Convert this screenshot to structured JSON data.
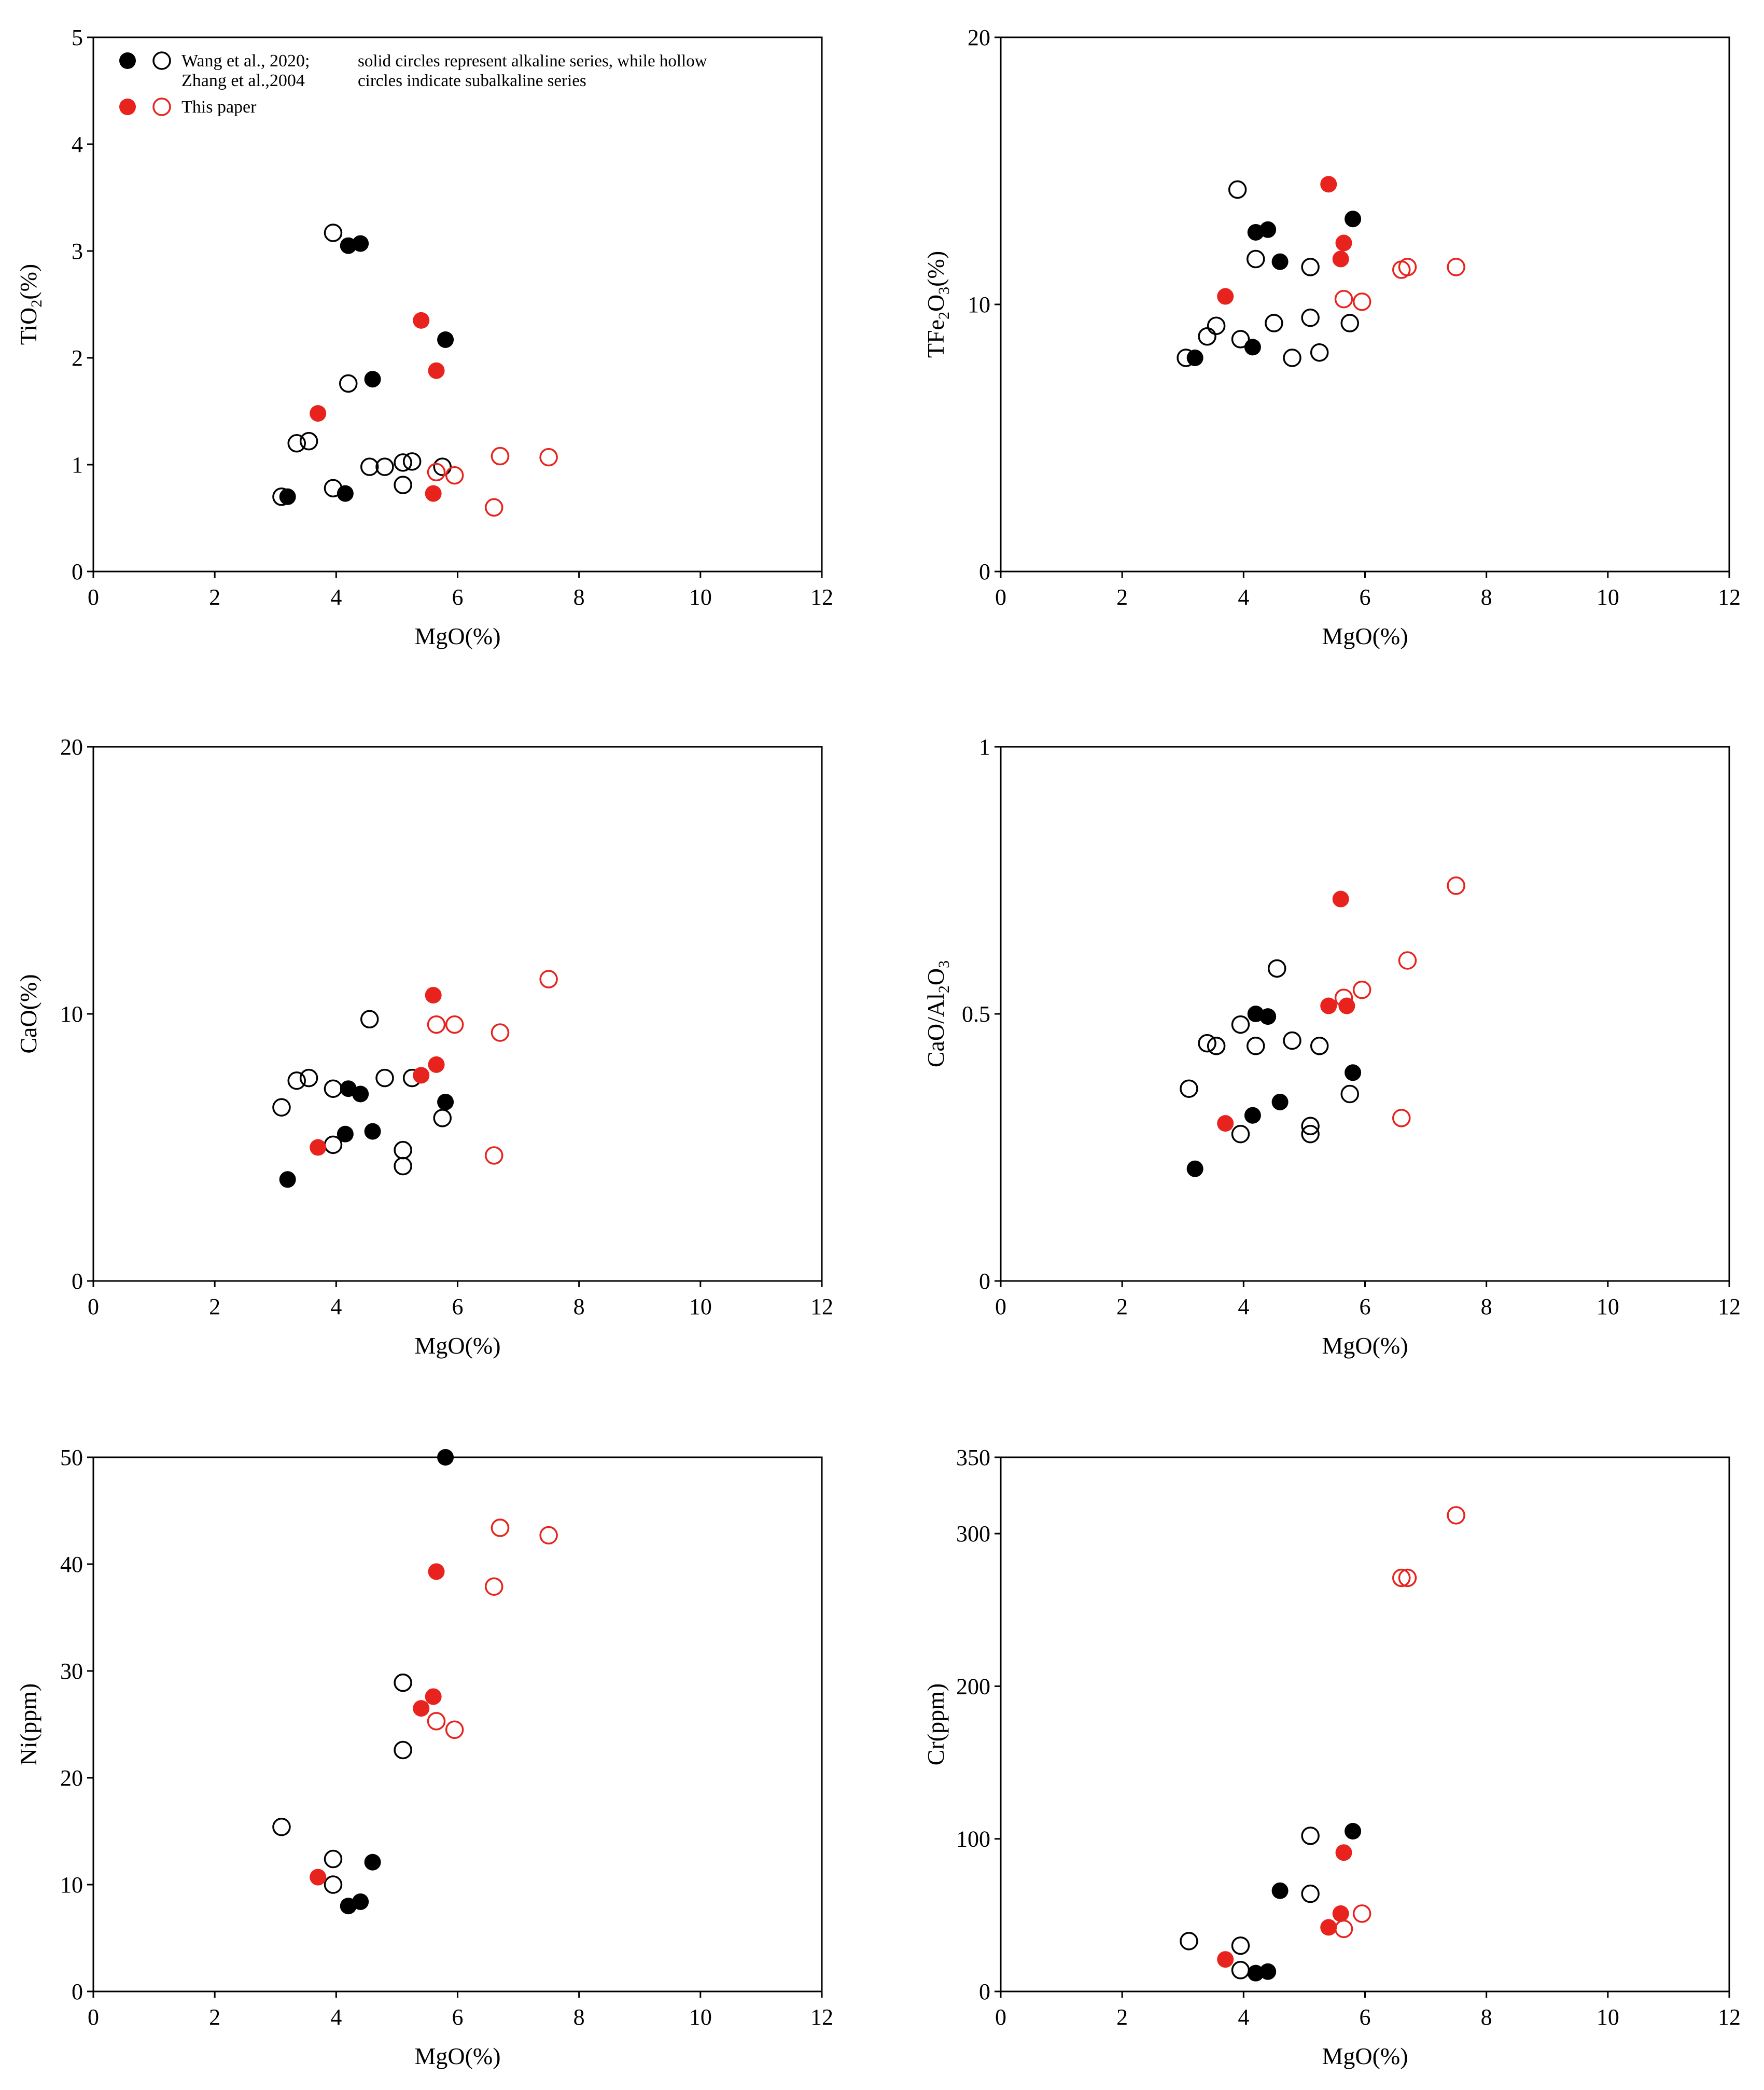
{
  "colors": {
    "ref": "#000000",
    "paper": "#e8231d"
  },
  "legend": {
    "ref_line1": "Wang et al., 2020;",
    "ref_line2": "Zhang et al.,2004",
    "paper": "This paper",
    "note_line1": "solid circles represent alkaline series, while hollow",
    "note_line2": "circles indicate subalkaline series"
  },
  "chart_data": [
    {
      "type": "scatter",
      "id": "tio2",
      "xlabel": "MgO(%)",
      "ylabel": "TiO2(%)",
      "xlim": [
        0,
        12
      ],
      "ylim": [
        0,
        5
      ],
      "xticks": [
        0,
        2,
        4,
        6,
        8,
        10,
        12
      ],
      "yticks": [
        0,
        1,
        2,
        3,
        4,
        5
      ],
      "series": [
        {
          "name": "Wang et al., 2020; Zhang et al.,2004 (alkaline)",
          "color": "#000000",
          "filled": true,
          "points": [
            [
              3.2,
              0.7
            ],
            [
              4.15,
              0.73
            ],
            [
              4.2,
              3.05
            ],
            [
              4.4,
              3.07
            ],
            [
              4.6,
              1.8
            ],
            [
              5.8,
              2.17
            ]
          ]
        },
        {
          "name": "Wang et al., 2020; Zhang et al.,2004 (subalkaline)",
          "color": "#000000",
          "filled": false,
          "points": [
            [
              3.1,
              0.7
            ],
            [
              3.35,
              1.2
            ],
            [
              3.55,
              1.22
            ],
            [
              3.95,
              0.78
            ],
            [
              3.95,
              3.17
            ],
            [
              4.2,
              1.76
            ],
            [
              4.55,
              0.98
            ],
            [
              4.8,
              0.98
            ],
            [
              5.1,
              1.02
            ],
            [
              5.25,
              1.03
            ],
            [
              5.1,
              0.81
            ],
            [
              5.75,
              0.98
            ]
          ]
        },
        {
          "name": "This paper (alkaline)",
          "color": "#e8231d",
          "filled": true,
          "points": [
            [
              3.7,
              1.48
            ],
            [
              5.4,
              2.35
            ],
            [
              5.6,
              0.73
            ],
            [
              5.65,
              1.88
            ]
          ]
        },
        {
          "name": "This paper (subalkaline)",
          "color": "#e8231d",
          "filled": false,
          "points": [
            [
              5.65,
              0.93
            ],
            [
              5.95,
              0.9
            ],
            [
              6.6,
              0.6
            ],
            [
              6.7,
              1.08
            ],
            [
              7.5,
              1.07
            ]
          ]
        }
      ]
    },
    {
      "type": "scatter",
      "id": "tfe2o3",
      "xlabel": "MgO(%)",
      "ylabel": "TFe2O3(%)",
      "xlim": [
        0,
        12
      ],
      "ylim": [
        0,
        20
      ],
      "xticks": [
        0,
        2,
        4,
        6,
        8,
        10,
        12
      ],
      "yticks": [
        0,
        10,
        20
      ],
      "series": [
        {
          "name": "Wang et al., 2020; Zhang et al.,2004 (alkaline)",
          "color": "#000000",
          "filled": true,
          "points": [
            [
              3.2,
              8.0
            ],
            [
              4.15,
              8.4
            ],
            [
              4.2,
              12.7
            ],
            [
              4.4,
              12.8
            ],
            [
              4.6,
              11.6
            ],
            [
              5.8,
              13.2
            ]
          ]
        },
        {
          "name": "Wang et al., 2020; Zhang et al.,2004 (subalkaline)",
          "color": "#000000",
          "filled": false,
          "points": [
            [
              3.05,
              8.0
            ],
            [
              3.4,
              8.8
            ],
            [
              3.55,
              9.2
            ],
            [
              3.9,
              14.3
            ],
            [
              3.95,
              8.7
            ],
            [
              4.2,
              11.7
            ],
            [
              4.5,
              9.3
            ],
            [
              4.8,
              8.0
            ],
            [
              5.1,
              9.5
            ],
            [
              5.1,
              11.4
            ],
            [
              5.25,
              8.2
            ],
            [
              5.75,
              9.3
            ]
          ]
        },
        {
          "name": "This paper (alkaline)",
          "color": "#e8231d",
          "filled": true,
          "points": [
            [
              3.7,
              10.3
            ],
            [
              5.4,
              14.5
            ],
            [
              5.6,
              11.7
            ],
            [
              5.65,
              12.3
            ]
          ]
        },
        {
          "name": "This paper (subalkaline)",
          "color": "#e8231d",
          "filled": false,
          "points": [
            [
              5.65,
              10.2
            ],
            [
              5.95,
              10.1
            ],
            [
              6.6,
              11.3
            ],
            [
              6.7,
              11.4
            ],
            [
              7.5,
              11.4
            ]
          ]
        }
      ]
    },
    {
      "type": "scatter",
      "id": "cao",
      "xlabel": "MgO(%)",
      "ylabel": "CaO(%)",
      "xlim": [
        0,
        12
      ],
      "ylim": [
        0,
        20
      ],
      "xticks": [
        0,
        2,
        4,
        6,
        8,
        10,
        12
      ],
      "yticks": [
        0,
        10,
        20
      ],
      "series": [
        {
          "name": "Wang et al., 2020; Zhang et al.,2004 (alkaline)",
          "color": "#000000",
          "filled": true,
          "points": [
            [
              3.2,
              3.8
            ],
            [
              4.15,
              5.5
            ],
            [
              4.2,
              7.2
            ],
            [
              4.4,
              7.0
            ],
            [
              4.6,
              5.6
            ],
            [
              5.8,
              6.7
            ]
          ]
        },
        {
          "name": "Wang et al., 2020; Zhang et al.,2004 (subalkaline)",
          "color": "#000000",
          "filled": false,
          "points": [
            [
              3.1,
              6.5
            ],
            [
              3.35,
              7.5
            ],
            [
              3.55,
              7.6
            ],
            [
              3.95,
              7.2
            ],
            [
              3.95,
              5.1
            ],
            [
              4.55,
              9.8
            ],
            [
              4.8,
              7.6
            ],
            [
              5.1,
              4.9
            ],
            [
              5.1,
              4.3
            ],
            [
              5.25,
              7.6
            ],
            [
              5.75,
              6.1
            ]
          ]
        },
        {
          "name": "This paper (alkaline)",
          "color": "#e8231d",
          "filled": true,
          "points": [
            [
              3.7,
              5.0
            ],
            [
              5.4,
              7.7
            ],
            [
              5.6,
              10.7
            ],
            [
              5.65,
              8.1
            ]
          ]
        },
        {
          "name": "This paper (subalkaline)",
          "color": "#e8231d",
          "filled": false,
          "points": [
            [
              5.65,
              9.6
            ],
            [
              5.95,
              9.6
            ],
            [
              6.6,
              4.7
            ],
            [
              6.7,
              9.3
            ],
            [
              7.5,
              11.3
            ]
          ]
        }
      ]
    },
    {
      "type": "scatter",
      "id": "cao_al2o3",
      "xlabel": "MgO(%)",
      "ylabel": "CaO/Al2O3",
      "xlim": [
        0,
        12
      ],
      "ylim": [
        0,
        1
      ],
      "xticks": [
        0,
        2,
        4,
        6,
        8,
        10,
        12
      ],
      "yticks": [
        0,
        0.5,
        1
      ],
      "series": [
        {
          "name": "Wang et al., 2020; Zhang et al.,2004 (alkaline)",
          "color": "#000000",
          "filled": true,
          "points": [
            [
              3.2,
              0.21
            ],
            [
              4.15,
              0.31
            ],
            [
              4.2,
              0.5
            ],
            [
              4.4,
              0.495
            ],
            [
              4.6,
              0.335
            ],
            [
              5.8,
              0.39
            ]
          ]
        },
        {
          "name": "Wang et al., 2020; Zhang et al.,2004 (subalkaline)",
          "color": "#000000",
          "filled": false,
          "points": [
            [
              3.1,
              0.36
            ],
            [
              3.4,
              0.445
            ],
            [
              3.55,
              0.44
            ],
            [
              3.95,
              0.48
            ],
            [
              3.95,
              0.275
            ],
            [
              4.2,
              0.44
            ],
            [
              4.55,
              0.585
            ],
            [
              4.8,
              0.45
            ],
            [
              5.1,
              0.29
            ],
            [
              5.1,
              0.275
            ],
            [
              5.25,
              0.44
            ],
            [
              5.75,
              0.35
            ]
          ]
        },
        {
          "name": "This paper (alkaline)",
          "color": "#e8231d",
          "filled": true,
          "points": [
            [
              3.7,
              0.295
            ],
            [
              5.4,
              0.515
            ],
            [
              5.6,
              0.715
            ],
            [
              5.7,
              0.515
            ]
          ]
        },
        {
          "name": "This paper (subalkaline)",
          "color": "#e8231d",
          "filled": false,
          "points": [
            [
              5.65,
              0.53
            ],
            [
              5.95,
              0.545
            ],
            [
              6.6,
              0.305
            ],
            [
              6.7,
              0.6
            ],
            [
              7.5,
              0.74
            ]
          ]
        }
      ]
    },
    {
      "type": "scatter",
      "id": "ni",
      "xlabel": "MgO(%)",
      "ylabel": "Ni(ppm)",
      "xlim": [
        0,
        12
      ],
      "ylim": [
        0,
        50
      ],
      "xticks": [
        0,
        2,
        4,
        6,
        8,
        10,
        12
      ],
      "yticks": [
        0,
        10,
        20,
        30,
        40,
        50
      ],
      "series": [
        {
          "name": "Wang et al., 2020; Zhang et al.,2004 (alkaline)",
          "color": "#000000",
          "filled": true,
          "points": [
            [
              4.2,
              8.0
            ],
            [
              4.4,
              8.4
            ],
            [
              4.6,
              12.1
            ],
            [
              5.8,
              50
            ]
          ]
        },
        {
          "name": "Wang et al., 2020; Zhang et al.,2004 (subalkaline)",
          "color": "#000000",
          "filled": false,
          "points": [
            [
              3.1,
              15.4
            ],
            [
              3.95,
              12.4
            ],
            [
              3.95,
              10.0
            ],
            [
              5.1,
              28.9
            ],
            [
              5.1,
              22.6
            ]
          ]
        },
        {
          "name": "This paper (alkaline)",
          "color": "#e8231d",
          "filled": true,
          "points": [
            [
              3.7,
              10.7
            ],
            [
              5.4,
              26.5
            ],
            [
              5.6,
              27.6
            ],
            [
              5.65,
              39.3
            ]
          ]
        },
        {
          "name": "This paper (subalkaline)",
          "color": "#e8231d",
          "filled": false,
          "points": [
            [
              5.65,
              25.3
            ],
            [
              5.95,
              24.5
            ],
            [
              6.6,
              37.9
            ],
            [
              6.7,
              43.4
            ],
            [
              7.5,
              42.7
            ]
          ]
        }
      ]
    },
    {
      "type": "scatter",
      "id": "cr",
      "xlabel": "MgO(%)",
      "ylabel": "Cr(ppm)",
      "xlim": [
        0,
        12
      ],
      "ylim": [
        0,
        350
      ],
      "xticks": [
        0,
        2,
        4,
        6,
        8,
        10,
        12
      ],
      "yticks": [
        0,
        100,
        200,
        300,
        350
      ],
      "series": [
        {
          "name": "Wang et al., 2020; Zhang et al.,2004 (alkaline)",
          "color": "#000000",
          "filled": true,
          "points": [
            [
              4.2,
              12
            ],
            [
              4.4,
              13
            ],
            [
              4.6,
              66
            ],
            [
              5.8,
              105
            ]
          ]
        },
        {
          "name": "Wang et al., 2020; Zhang et al.,2004 (subalkaline)",
          "color": "#000000",
          "filled": false,
          "points": [
            [
              3.1,
              33
            ],
            [
              3.95,
              30
            ],
            [
              3.95,
              14
            ],
            [
              5.1,
              102
            ],
            [
              5.1,
              64
            ]
          ]
        },
        {
          "name": "This paper (alkaline)",
          "color": "#e8231d",
          "filled": true,
          "points": [
            [
              3.7,
              21
            ],
            [
              5.4,
              42
            ],
            [
              5.6,
              51
            ],
            [
              5.65,
              91
            ]
          ]
        },
        {
          "name": "This paper (subalkaline)",
          "color": "#e8231d",
          "filled": false,
          "points": [
            [
              5.65,
              41
            ],
            [
              5.95,
              51
            ],
            [
              6.6,
              271
            ],
            [
              6.7,
              271
            ],
            [
              7.5,
              312
            ]
          ]
        }
      ]
    }
  ]
}
